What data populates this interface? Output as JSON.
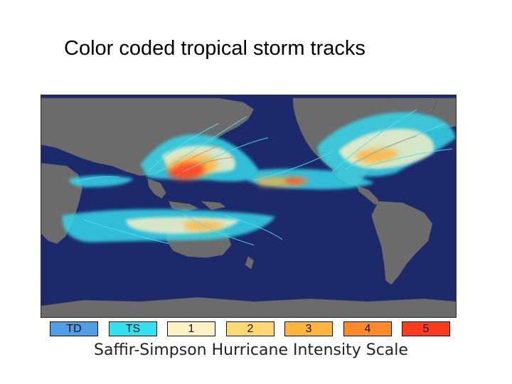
{
  "slide": {
    "title": "Color coded tropical storm tracks"
  },
  "map": {
    "ocean_color": "#1c2a6b",
    "land_color": "#6b6b6b"
  },
  "legend": {
    "scale_label": "Saffir-Simpson Hurricane Intensity Scale",
    "categories": [
      {
        "label": "TD",
        "color": "#4f9fe6"
      },
      {
        "label": "TS",
        "color": "#33e0ee"
      },
      {
        "label": "1",
        "color": "#fff1c6"
      },
      {
        "label": "2",
        "color": "#ffd871"
      },
      {
        "label": "3",
        "color": "#ffb43c"
      },
      {
        "label": "4",
        "color": "#ff8a2a"
      },
      {
        "label": "5",
        "color": "#ff3b1e"
      }
    ]
  }
}
